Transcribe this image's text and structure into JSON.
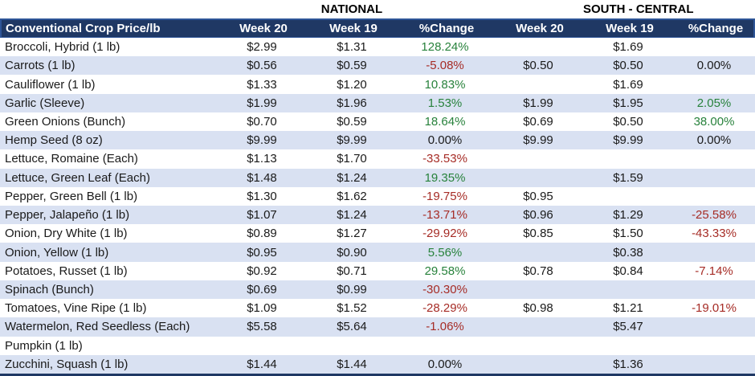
{
  "colors": {
    "header_bg": "#1F3864",
    "header_border": "#2E5597",
    "header_text": "#FFFFFF",
    "row_alt_bg": "#D9E1F2",
    "row_bg": "#FFFFFF",
    "text": "#1A1A1A",
    "positive_change": "#28823C",
    "negative_change": "#A62C26",
    "table_bottom_border": "#1F3864"
  },
  "group_headers": {
    "national": "NATIONAL",
    "south_central": "SOUTH - CENTRAL"
  },
  "header": {
    "crop": "Conventional Crop Price/lb",
    "national": {
      "week20": "Week 20",
      "week19": "Week 19",
      "change": "%Change"
    },
    "south_central": {
      "week20": "Week 20",
      "week19": "Week 19",
      "change": "%Change"
    }
  },
  "rows": [
    {
      "name": "Broccoli, Hybrid (1 lb)",
      "cells": [
        "$2.99",
        "$1.31",
        "128.24%",
        "",
        "$1.69",
        ""
      ]
    },
    {
      "name": "Carrots (1 lb)",
      "cells": [
        "$0.56",
        "$0.59",
        "-5.08%",
        "$0.50",
        "$0.50",
        "0.00%"
      ]
    },
    {
      "name": "Cauliflower (1 lb)",
      "cells": [
        "$1.33",
        "$1.20",
        "10.83%",
        "",
        "$1.69",
        ""
      ]
    },
    {
      "name": "Garlic (Sleeve)",
      "cells": [
        "$1.99",
        "$1.96",
        "1.53%",
        "$1.99",
        "$1.95",
        "2.05%"
      ]
    },
    {
      "name": "Green Onions (Bunch)",
      "cells": [
        "$0.70",
        "$0.59",
        "18.64%",
        "$0.69",
        "$0.50",
        "38.00%"
      ]
    },
    {
      "name": "Hemp Seed (8 oz)",
      "cells": [
        "$9.99",
        "$9.99",
        "0.00%",
        "$9.99",
        "$9.99",
        "0.00%"
      ]
    },
    {
      "name": "Lettuce, Romaine (Each)",
      "cells": [
        "$1.13",
        "$1.70",
        "-33.53%",
        "",
        "",
        ""
      ]
    },
    {
      "name": "Lettuce, Green Leaf (Each)",
      "cells": [
        "$1.48",
        "$1.24",
        "19.35%",
        "",
        "$1.59",
        ""
      ]
    },
    {
      "name": "Pepper, Green Bell (1 lb)",
      "cells": [
        "$1.30",
        "$1.62",
        "-19.75%",
        "$0.95",
        "",
        ""
      ]
    },
    {
      "name": "Pepper, Jalapeño (1 lb)",
      "cells": [
        "$1.07",
        "$1.24",
        "-13.71%",
        "$0.96",
        "$1.29",
        "-25.58%"
      ]
    },
    {
      "name": "Onion, Dry White (1 lb)",
      "cells": [
        "$0.89",
        "$1.27",
        "-29.92%",
        "$0.85",
        "$1.50",
        "-43.33%"
      ]
    },
    {
      "name": "Onion, Yellow (1 lb)",
      "cells": [
        "$0.95",
        "$0.90",
        "5.56%",
        "",
        "$0.38",
        ""
      ]
    },
    {
      "name": "Potatoes, Russet (1 lb)",
      "cells": [
        "$0.92",
        "$0.71",
        "29.58%",
        "$0.78",
        "$0.84",
        "-7.14%"
      ]
    },
    {
      "name": "Spinach (Bunch)",
      "cells": [
        "$0.69",
        "$0.99",
        "-30.30%",
        "",
        "",
        ""
      ]
    },
    {
      "name": "Tomatoes, Vine Ripe (1 lb)",
      "cells": [
        "$1.09",
        "$1.52",
        "-28.29%",
        "$0.98",
        "$1.21",
        "-19.01%"
      ]
    },
    {
      "name": "Watermelon, Red Seedless (Each)",
      "cells": [
        "$5.58",
        "$5.64",
        "-1.06%",
        "",
        "$5.47",
        ""
      ]
    },
    {
      "name": "Pumpkin (1 lb)",
      "cells": [
        "",
        "",
        "",
        "",
        "",
        ""
      ]
    },
    {
      "name": "Zucchini, Squash (1 lb)",
      "cells": [
        "$1.44",
        "$1.44",
        "0.00%",
        "",
        "$1.36",
        ""
      ]
    }
  ]
}
